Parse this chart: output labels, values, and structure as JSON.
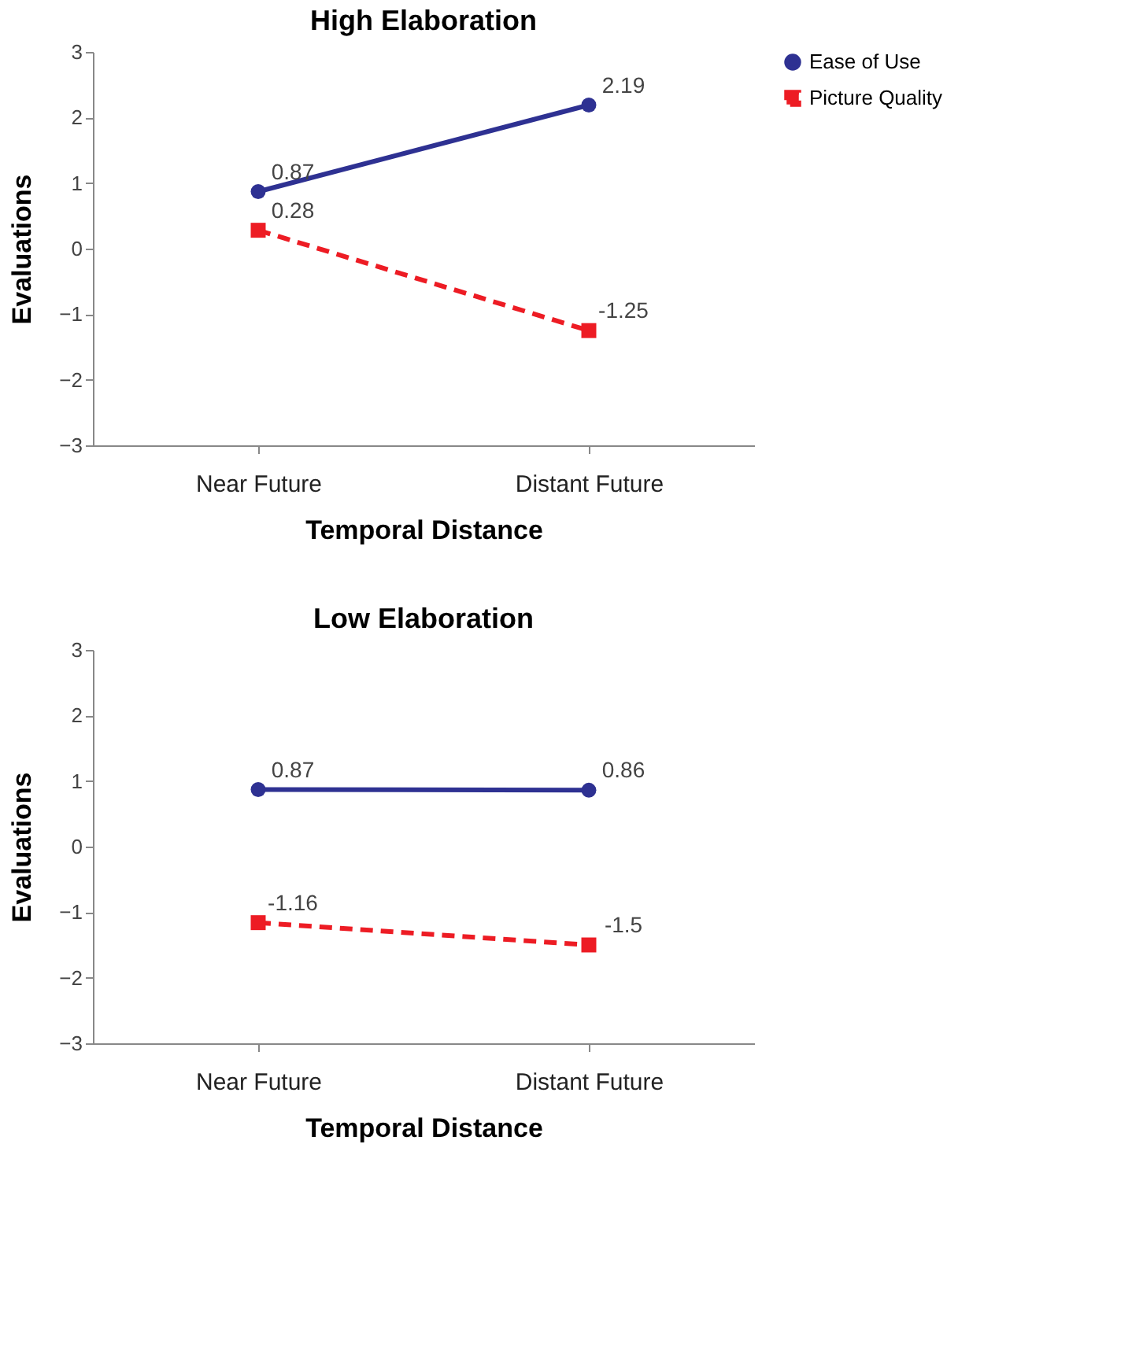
{
  "chart_data": [
    {
      "type": "line",
      "title": "High Elaboration",
      "xlabel": "Temporal Distance",
      "ylabel": "Evaluations",
      "categories": [
        "Near Future",
        "Distant Future"
      ],
      "ylim": [
        -3,
        3
      ],
      "yticks": [
        -3,
        -2,
        -1,
        0,
        1,
        2,
        3
      ],
      "grid": false,
      "legend": "right",
      "data_labels": true,
      "series": [
        {
          "name": "Ease of Use",
          "color": "#2e3192",
          "values": [
            0.87,
            2.19
          ],
          "marker": "circle",
          "line_style": "solid"
        },
        {
          "name": "Picture Quality",
          "color": "#ed1c24",
          "values": [
            0.28,
            -1.25
          ],
          "marker": "square",
          "line_style": "dashed"
        }
      ]
    },
    {
      "type": "line",
      "title": "Low Elaboration",
      "xlabel": "Temporal Distance",
      "ylabel": "Evaluations",
      "categories": [
        "Near Future",
        "Distant Future"
      ],
      "ylim": [
        -3,
        3
      ],
      "yticks": [
        -3,
        -2,
        -1,
        0,
        1,
        2,
        3
      ],
      "grid": false,
      "legend": "right",
      "data_labels": true,
      "series": [
        {
          "name": "Ease of Use",
          "color": "#2e3192",
          "values": [
            0.87,
            0.86
          ],
          "marker": "circle",
          "line_style": "solid"
        },
        {
          "name": "Picture Quality",
          "color": "#ed1c24",
          "values": [
            -1.16,
            -1.5
          ],
          "marker": "square",
          "line_style": "dashed"
        }
      ]
    }
  ]
}
